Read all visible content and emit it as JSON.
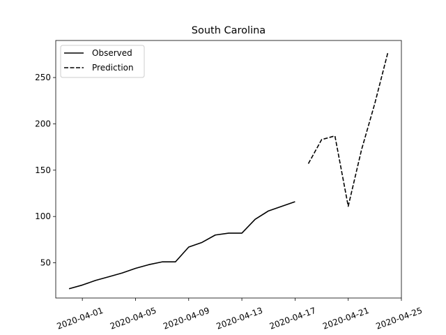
{
  "chart_data": {
    "type": "line",
    "title": "South Carolina",
    "xlabel": "",
    "ylabel": "",
    "legend_position": "top-left",
    "grid": false,
    "xlim": [
      "2020-03-30",
      "2020-04-25"
    ],
    "ylim": [
      12,
      290
    ],
    "x_ticks": [
      "2020-04-01",
      "2020-04-05",
      "2020-04-09",
      "2020-04-13",
      "2020-04-17",
      "2020-04-21",
      "2020-04-25"
    ],
    "y_ticks": [
      50,
      100,
      150,
      200,
      250
    ],
    "series": [
      {
        "name": "Observed",
        "style": "solid",
        "color": "#000000",
        "points": [
          {
            "x": "2020-03-31",
            "y": 22
          },
          {
            "x": "2020-04-01",
            "y": 26
          },
          {
            "x": "2020-04-02",
            "y": 31
          },
          {
            "x": "2020-04-03",
            "y": 35
          },
          {
            "x": "2020-04-04",
            "y": 39
          },
          {
            "x": "2020-04-05",
            "y": 44
          },
          {
            "x": "2020-04-06",
            "y": 48
          },
          {
            "x": "2020-04-07",
            "y": 51
          },
          {
            "x": "2020-04-08",
            "y": 51
          },
          {
            "x": "2020-04-09",
            "y": 67
          },
          {
            "x": "2020-04-10",
            "y": 72
          },
          {
            "x": "2020-04-11",
            "y": 80
          },
          {
            "x": "2020-04-12",
            "y": 82
          },
          {
            "x": "2020-04-13",
            "y": 82
          },
          {
            "x": "2020-04-14",
            "y": 97
          },
          {
            "x": "2020-04-15",
            "y": 106
          },
          {
            "x": "2020-04-16",
            "y": 111
          },
          {
            "x": "2020-04-17",
            "y": 116
          }
        ]
      },
      {
        "name": "Prediction",
        "style": "dashed",
        "color": "#000000",
        "points": [
          {
            "x": "2020-04-18",
            "y": 157
          },
          {
            "x": "2020-04-19",
            "y": 183
          },
          {
            "x": "2020-04-20",
            "y": 187
          },
          {
            "x": "2020-04-21",
            "y": 111
          },
          {
            "x": "2020-04-22",
            "y": 172
          },
          {
            "x": "2020-04-23",
            "y": 222
          },
          {
            "x": "2020-04-24",
            "y": 278
          }
        ]
      }
    ]
  }
}
